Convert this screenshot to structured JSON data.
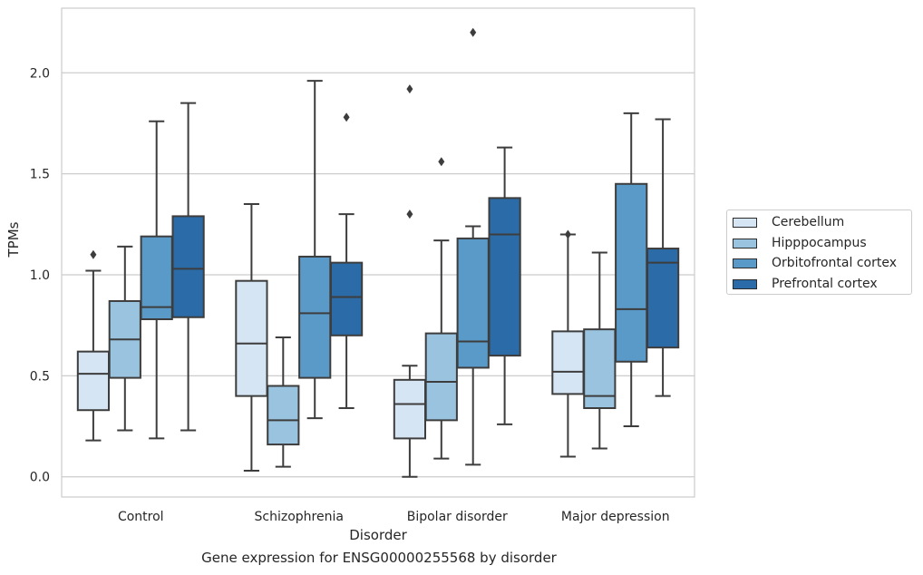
{
  "caption": "Gene expression for ENSG00000255568 by disorder",
  "chart_data": {
    "type": "boxplot",
    "xlabel": "Disorder",
    "ylabel": "TPMs",
    "ylim": [
      -0.1,
      2.32
    ],
    "yticks": [
      0.0,
      0.5,
      1.0,
      1.5,
      2.0
    ],
    "ytick_labels": [
      "0.0",
      "0.5",
      "1.0",
      "1.5",
      "2.0"
    ],
    "grid": "horizontal",
    "legend_position": "right",
    "categories": [
      "Control",
      "Schizophrenia",
      "Bipolar disorder",
      "Major depression"
    ],
    "series": [
      {
        "name": "Cerebellum",
        "color": "#d6e5f4",
        "boxes": [
          {
            "whislo": 0.18,
            "q1": 0.33,
            "med": 0.51,
            "q3": 0.62,
            "whishi": 1.02,
            "fliers": [
              1.1
            ]
          },
          {
            "whislo": 0.03,
            "q1": 0.4,
            "med": 0.66,
            "q3": 0.97,
            "whishi": 1.35,
            "fliers": []
          },
          {
            "whislo": 0.0,
            "q1": 0.19,
            "med": 0.36,
            "q3": 0.48,
            "whishi": 0.55,
            "fliers": [
              1.3,
              1.92
            ]
          },
          {
            "whislo": 0.1,
            "q1": 0.41,
            "med": 0.52,
            "q3": 0.72,
            "whishi": 1.2,
            "fliers": [
              1.2
            ]
          }
        ]
      },
      {
        "name": "Hipppocampus",
        "color": "#99c3de",
        "boxes": [
          {
            "whislo": 0.23,
            "q1": 0.49,
            "med": 0.68,
            "q3": 0.87,
            "whishi": 1.14,
            "fliers": []
          },
          {
            "whislo": 0.05,
            "q1": 0.16,
            "med": 0.28,
            "q3": 0.45,
            "whishi": 0.69,
            "fliers": []
          },
          {
            "whislo": 0.09,
            "q1": 0.28,
            "med": 0.47,
            "q3": 0.71,
            "whishi": 1.17,
            "fliers": [
              1.56
            ]
          },
          {
            "whislo": 0.14,
            "q1": 0.34,
            "med": 0.4,
            "q3": 0.73,
            "whishi": 1.11,
            "fliers": []
          }
        ]
      },
      {
        "name": "Orbitofrontal cortex",
        "color": "#5a9ac8",
        "boxes": [
          {
            "whislo": 0.19,
            "q1": 0.78,
            "med": 0.84,
            "q3": 1.19,
            "whishi": 1.76,
            "fliers": []
          },
          {
            "whislo": 0.29,
            "q1": 0.49,
            "med": 0.81,
            "q3": 1.09,
            "whishi": 1.96,
            "fliers": []
          },
          {
            "whislo": 0.06,
            "q1": 0.54,
            "med": 0.67,
            "q3": 1.18,
            "whishi": 1.24,
            "fliers": [
              2.2
            ]
          },
          {
            "whislo": 0.25,
            "q1": 0.57,
            "med": 0.83,
            "q3": 1.45,
            "whishi": 1.8,
            "fliers": []
          }
        ]
      },
      {
        "name": "Prefrontal cortex",
        "color": "#2a6ba8",
        "boxes": [
          {
            "whislo": 0.23,
            "q1": 0.79,
            "med": 1.03,
            "q3": 1.29,
            "whishi": 1.85,
            "fliers": []
          },
          {
            "whislo": 0.34,
            "q1": 0.7,
            "med": 0.89,
            "q3": 1.06,
            "whishi": 1.3,
            "fliers": [
              1.78
            ]
          },
          {
            "whislo": 0.26,
            "q1": 0.6,
            "med": 1.2,
            "q3": 1.38,
            "whishi": 1.63,
            "fliers": []
          },
          {
            "whislo": 0.4,
            "q1": 0.64,
            "med": 1.06,
            "q3": 1.13,
            "whishi": 1.77,
            "fliers": []
          }
        ]
      }
    ]
  }
}
